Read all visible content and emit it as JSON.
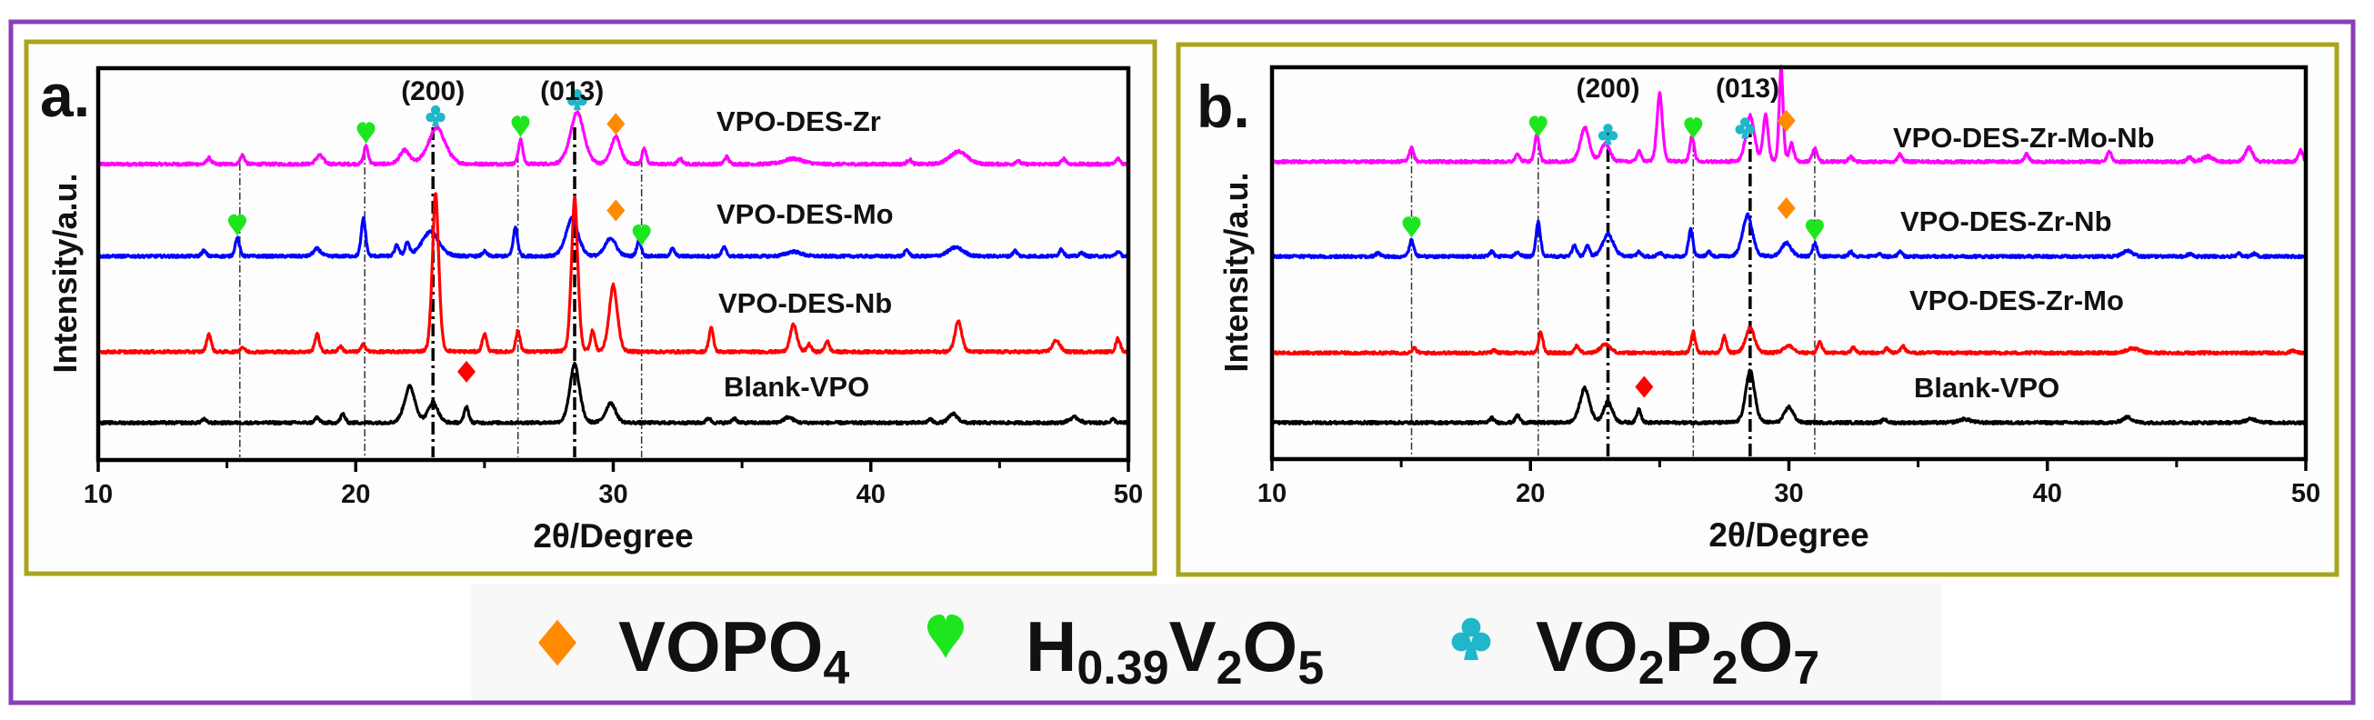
{
  "colors": {
    "outer_border": "#8a3fb5",
    "panel_border": "#a9a51f",
    "VOPO4": "#ff8a00",
    "H0.39V2O5": "#1ee61e",
    "VO2P2O7": "#1fb7c9",
    "impurity": "#ff0000"
  },
  "legend": {
    "items": [
      {
        "symbol": "diamond",
        "color": "#ff8a00",
        "parts": [
          "VOPO",
          "4"
        ]
      },
      {
        "symbol": "heart",
        "color": "#1ee61e",
        "parts": [
          "H",
          "0.39",
          "V",
          "2",
          "O",
          "5"
        ]
      },
      {
        "symbol": "club",
        "color": "#1fb7c9",
        "parts": [
          "VO",
          "2",
          "P",
          "2",
          "O",
          "7"
        ]
      }
    ]
  },
  "chart_data": [
    {
      "type": "line",
      "panel_label": "a.",
      "xlabel": "2θ/Degree",
      "ylabel": "Intensity/a.u.",
      "xlim": [
        10,
        50
      ],
      "ylim": [
        0,
        100
      ],
      "xticks": [
        10,
        20,
        30,
        40,
        50
      ],
      "xminor": [
        15,
        25,
        35,
        45
      ],
      "grid": false,
      "hkl_labels": [
        {
          "text": "(200)",
          "x": 23.0
        },
        {
          "text": "(013)",
          "x": 28.4
        }
      ],
      "ref_lines": {
        "major": [
          23.0,
          28.5
        ],
        "minor": [
          15.5,
          20.35,
          26.3,
          31.1
        ]
      },
      "series": [
        {
          "name": "VPO-DES-Zr",
          "color": "#ff00ff",
          "offset": 75.5,
          "peaks": [
            [
              14.3,
              1.6
            ],
            [
              15.6,
              2.3
            ],
            [
              18.6,
              2.3,
              0.15
            ],
            [
              20.4,
              4.7
            ],
            [
              21.9,
              3.5,
              0.2
            ],
            [
              23.15,
              9.3,
              0.35
            ],
            [
              26.4,
              6.3
            ],
            [
              28.6,
              13.3,
              0.28
            ],
            [
              30.1,
              7.0,
              0.2
            ],
            [
              31.2,
              4.0
            ],
            [
              32.6,
              1.4
            ],
            [
              34.4,
              1.9
            ],
            [
              37.0,
              1.4,
              0.4
            ],
            [
              41.5,
              1.2
            ],
            [
              43.4,
              3.3,
              0.35
            ],
            [
              45.7,
              0.9
            ],
            [
              47.5,
              1.4
            ],
            [
              49.6,
              1.4
            ]
          ]
        },
        {
          "name": "VPO-DES-Mo",
          "color": "#0000ff",
          "offset": 52.0,
          "peaks": [
            [
              14.1,
              1.4
            ],
            [
              15.4,
              4.7
            ],
            [
              18.5,
              1.9,
              0.15
            ],
            [
              20.3,
              9.8
            ],
            [
              21.6,
              2.8
            ],
            [
              22.0,
              3.5
            ],
            [
              22.9,
              6.3,
              0.35
            ],
            [
              25.0,
              1.2
            ],
            [
              26.2,
              7.4
            ],
            [
              28.4,
              9.8,
              0.25
            ],
            [
              29.9,
              4.7,
              0.22
            ],
            [
              31.0,
              4.2
            ],
            [
              32.3,
              1.9
            ],
            [
              34.3,
              2.3
            ],
            [
              37.0,
              1.2,
              0.3
            ],
            [
              41.4,
              1.6
            ],
            [
              43.3,
              2.3,
              0.3
            ],
            [
              45.6,
              1.4
            ],
            [
              47.4,
              1.9
            ],
            [
              48.2,
              0.9
            ],
            [
              49.6,
              1.2
            ]
          ]
        },
        {
          "name": "VPO-DES-Nb",
          "color": "#ff0000",
          "offset": 27.6,
          "peaks": [
            [
              14.3,
              4.7
            ],
            [
              15.6,
              1.2
            ],
            [
              18.5,
              4.7
            ],
            [
              19.4,
              1.4
            ],
            [
              20.3,
              1.9
            ],
            [
              23.1,
              40.7,
              0.13
            ],
            [
              25.0,
              4.7
            ],
            [
              26.3,
              5.3
            ],
            [
              28.5,
              39.5,
              0.13
            ],
            [
              29.2,
              5.3
            ],
            [
              30.0,
              17.0,
              0.17
            ],
            [
              33.8,
              6.3
            ],
            [
              37.0,
              7.0,
              0.14
            ],
            [
              37.6,
              1.9
            ],
            [
              38.3,
              2.8
            ],
            [
              43.4,
              8.1,
              0.14
            ],
            [
              47.2,
              3.0,
              0.15
            ],
            [
              49.6,
              3.5
            ]
          ]
        },
        {
          "name": "Blank-VPO",
          "color": "#000000",
          "offset": 9.5,
          "peaks": [
            [
              14.1,
              0.9
            ],
            [
              18.5,
              1.4
            ],
            [
              19.5,
              2.3
            ],
            [
              22.1,
              9.3,
              0.22
            ],
            [
              23.0,
              5.3,
              0.2
            ],
            [
              24.3,
              4.2
            ],
            [
              28.5,
              15.0,
              0.2
            ],
            [
              29.9,
              5.1,
              0.2
            ],
            [
              33.7,
              1.2
            ],
            [
              34.7,
              1.2
            ],
            [
              36.8,
              1.4,
              0.2
            ],
            [
              42.3,
              0.9
            ],
            [
              43.2,
              2.3,
              0.18
            ],
            [
              47.9,
              1.4,
              0.2
            ],
            [
              49.4,
              0.9
            ]
          ]
        }
      ],
      "markers": [
        {
          "symbol": "heart",
          "color": "#1ee61e",
          "x": 20.4,
          "series": 0
        },
        {
          "symbol": "club",
          "color": "#1fb7c9",
          "x": 23.1,
          "series": 0
        },
        {
          "symbol": "heart",
          "color": "#1ee61e",
          "x": 26.4,
          "series": 0
        },
        {
          "symbol": "club",
          "color": "#1fb7c9",
          "x": 28.6,
          "series": 0
        },
        {
          "symbol": "diamond",
          "color": "#ff8a00",
          "x": 30.1,
          "series": 0
        },
        {
          "symbol": "heart",
          "color": "#1ee61e",
          "x": 15.4,
          "series": 1
        },
        {
          "symbol": "diamond",
          "color": "#ff8a00",
          "x": 30.1,
          "series": 1,
          "raised": true
        },
        {
          "symbol": "heart",
          "color": "#1ee61e",
          "x": 31.1,
          "series": 1
        },
        {
          "symbol": "diamond",
          "color": "#ff0000",
          "x": 24.3,
          "series": 3,
          "raised": true
        }
      ]
    },
    {
      "type": "line",
      "panel_label": "b.",
      "xlabel": "2θ/Degree",
      "ylabel": "Intensity/a.u.",
      "xlim": [
        10,
        50
      ],
      "ylim": [
        0,
        100
      ],
      "xticks": [
        10,
        20,
        30,
        40,
        50
      ],
      "xminor": [
        15,
        25,
        35,
        45
      ],
      "grid": false,
      "hkl_labels": [
        {
          "text": "(200)",
          "x": 23.0
        },
        {
          "text": "(013)",
          "x": 28.4
        }
      ],
      "ref_lines": {
        "major": [
          23.0,
          28.5
        ],
        "minor": [
          15.4,
          20.3,
          26.3,
          31.0
        ]
      },
      "series": [
        {
          "name": "VPO-DES-Zr-Mo-Nb",
          "color": "#ff00ff",
          "offset": 75.9,
          "peaks": [
            [
              15.4,
              3.5
            ],
            [
              19.5,
              1.9
            ],
            [
              20.25,
              7.0
            ],
            [
              22.1,
              8.8,
              0.18
            ],
            [
              22.9,
              4.7,
              0.18
            ],
            [
              24.2,
              2.8
            ],
            [
              25.0,
              17.7,
              0.11
            ],
            [
              26.25,
              6.5
            ],
            [
              28.5,
              11.9,
              0.17
            ],
            [
              29.1,
              12.3,
              0.1
            ],
            [
              29.7,
              24.4,
              0.08
            ],
            [
              30.1,
              4.7
            ],
            [
              31.0,
              3.5
            ],
            [
              32.4,
              1.2
            ],
            [
              34.3,
              1.9
            ],
            [
              39.2,
              1.9
            ],
            [
              42.4,
              2.8
            ],
            [
              45.5,
              1.2
            ],
            [
              46.2,
              1.4,
              0.2
            ],
            [
              47.8,
              3.7,
              0.15
            ],
            [
              49.8,
              2.8
            ]
          ]
        },
        {
          "name": "VPO-DES-Zr-Nb",
          "color": "#0000ff",
          "offset": 51.7,
          "peaks": [
            [
              14.1,
              0.9
            ],
            [
              15.4,
              4.2
            ],
            [
              18.5,
              1.2
            ],
            [
              19.5,
              1.2
            ],
            [
              20.3,
              8.8
            ],
            [
              21.7,
              2.8
            ],
            [
              22.2,
              2.8
            ],
            [
              23.0,
              5.8,
              0.22
            ],
            [
              24.2,
              1.2
            ],
            [
              25.0,
              0.9
            ],
            [
              26.2,
              7.0
            ],
            [
              26.9,
              1.2
            ],
            [
              28.4,
              10.7,
              0.2
            ],
            [
              29.9,
              3.5,
              0.2
            ],
            [
              31.0,
              3.5
            ],
            [
              32.4,
              1.2
            ],
            [
              33.5,
              0.7
            ],
            [
              34.3,
              1.2
            ],
            [
              43.1,
              1.4,
              0.2
            ],
            [
              45.5,
              0.7
            ],
            [
              47.4,
              0.7
            ],
            [
              48.0,
              0.7
            ]
          ]
        },
        {
          "name": "VPO-DES-Zr-Mo",
          "color": "#ff0000",
          "offset": 27.1,
          "peaks": [
            [
              15.5,
              1.2
            ],
            [
              18.6,
              0.7
            ],
            [
              20.4,
              5.3
            ],
            [
              21.8,
              1.9
            ],
            [
              22.9,
              2.3,
              0.2
            ],
            [
              26.3,
              5.3
            ],
            [
              27.5,
              4.2
            ],
            [
              28.5,
              6.5,
              0.18
            ],
            [
              30.0,
              1.9,
              0.2
            ],
            [
              31.2,
              2.8
            ],
            [
              32.5,
              1.4
            ],
            [
              33.8,
              1.2
            ],
            [
              34.4,
              1.9
            ],
            [
              43.3,
              1.2,
              0.25
            ],
            [
              49.5,
              0.7
            ]
          ]
        },
        {
          "name": "Blank-VPO",
          "color": "#000000",
          "offset": 9.3,
          "peaks": [
            [
              18.5,
              1.2
            ],
            [
              19.5,
              1.9
            ],
            [
              22.1,
              8.8,
              0.2
            ],
            [
              23.0,
              5.3,
              0.18
            ],
            [
              24.2,
              3.5
            ],
            [
              28.5,
              13.5,
              0.18
            ],
            [
              30.0,
              4.0,
              0.18
            ],
            [
              33.7,
              0.9
            ],
            [
              36.8,
              0.9,
              0.25
            ],
            [
              43.1,
              1.4,
              0.2
            ],
            [
              47.9,
              0.9,
              0.25
            ]
          ]
        }
      ],
      "markers": [
        {
          "symbol": "heart",
          "color": "#1ee61e",
          "x": 20.3,
          "series": 0
        },
        {
          "symbol": "club",
          "color": "#1fb7c9",
          "x": 23.0,
          "series": 0
        },
        {
          "symbol": "heart",
          "color": "#1ee61e",
          "x": 26.3,
          "series": 0
        },
        {
          "symbol": "club",
          "color": "#1fb7c9",
          "x": 28.3,
          "series": 0
        },
        {
          "symbol": "diamond",
          "color": "#ff8a00",
          "x": 29.9,
          "series": 0,
          "raised": true
        },
        {
          "symbol": "heart",
          "color": "#1ee61e",
          "x": 15.4,
          "series": 1
        },
        {
          "symbol": "diamond",
          "color": "#ff8a00",
          "x": 29.9,
          "series": 1,
          "raised": true
        },
        {
          "symbol": "heart",
          "color": "#1ee61e",
          "x": 31.0,
          "series": 1
        },
        {
          "symbol": "diamond",
          "color": "#ff0000",
          "x": 24.4,
          "series": 3,
          "raised": true
        }
      ]
    }
  ]
}
